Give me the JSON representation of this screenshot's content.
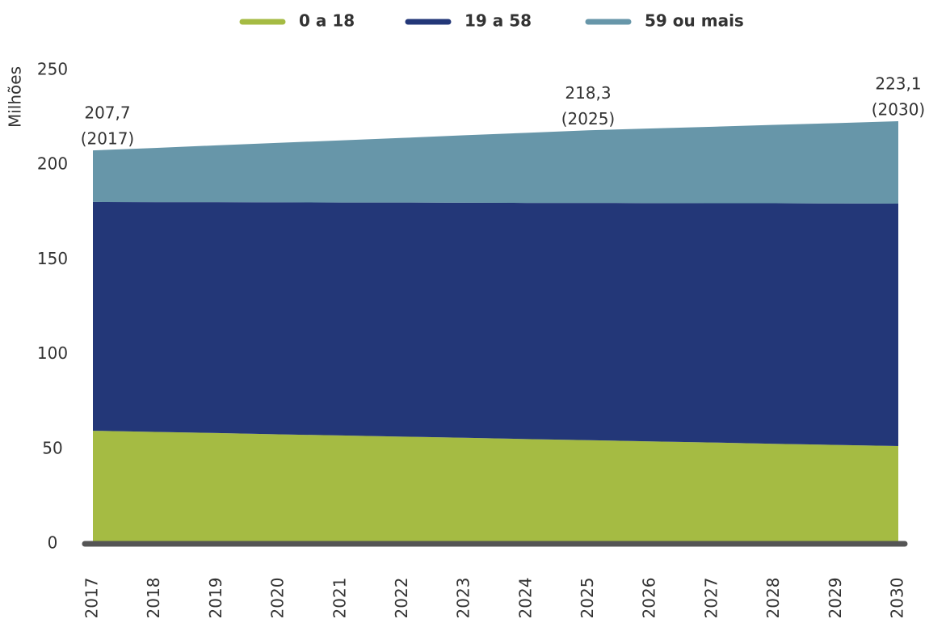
{
  "chart_data": {
    "type": "stacked-area",
    "y_label": "Milhões",
    "categories": [
      "2017",
      "2018",
      "2019",
      "2020",
      "2021",
      "2022",
      "2023",
      "2024",
      "2025",
      "2026",
      "2027",
      "2028",
      "2029",
      "2030"
    ],
    "series": [
      {
        "name": "0 a 18",
        "color": "#a5bb43",
        "values": [
          59.7,
          59.1,
          58.5,
          57.8,
          57.2,
          56.6,
          56.0,
          55.3,
          54.7,
          54.1,
          53.5,
          52.8,
          52.2,
          51.6
        ]
      },
      {
        "name": "19 a 58",
        "color": "#233778",
        "values": [
          120.8,
          121.3,
          121.9,
          122.5,
          123.0,
          123.6,
          124.1,
          124.7,
          125.3,
          125.8,
          126.3,
          127.0,
          127.5,
          128.0
        ]
      },
      {
        "name": "59 ou mais",
        "color": "#6796a9",
        "values": [
          27.2,
          28.6,
          30.0,
          31.4,
          32.8,
          34.1,
          35.6,
          37.0,
          38.3,
          39.4,
          40.4,
          41.4,
          42.4,
          43.5
        ]
      }
    ],
    "ylim": [
      0,
      250
    ],
    "yticks": [
      0,
      50,
      100,
      150,
      200,
      250
    ],
    "annotations": [
      {
        "value": 207.7,
        "label": "207,7",
        "year": "(2017)"
      },
      {
        "value": 218.3,
        "label": "218,3",
        "year": "(2025)"
      },
      {
        "value": 223.1,
        "label": "223,1",
        "year": "(2030)"
      }
    ]
  }
}
